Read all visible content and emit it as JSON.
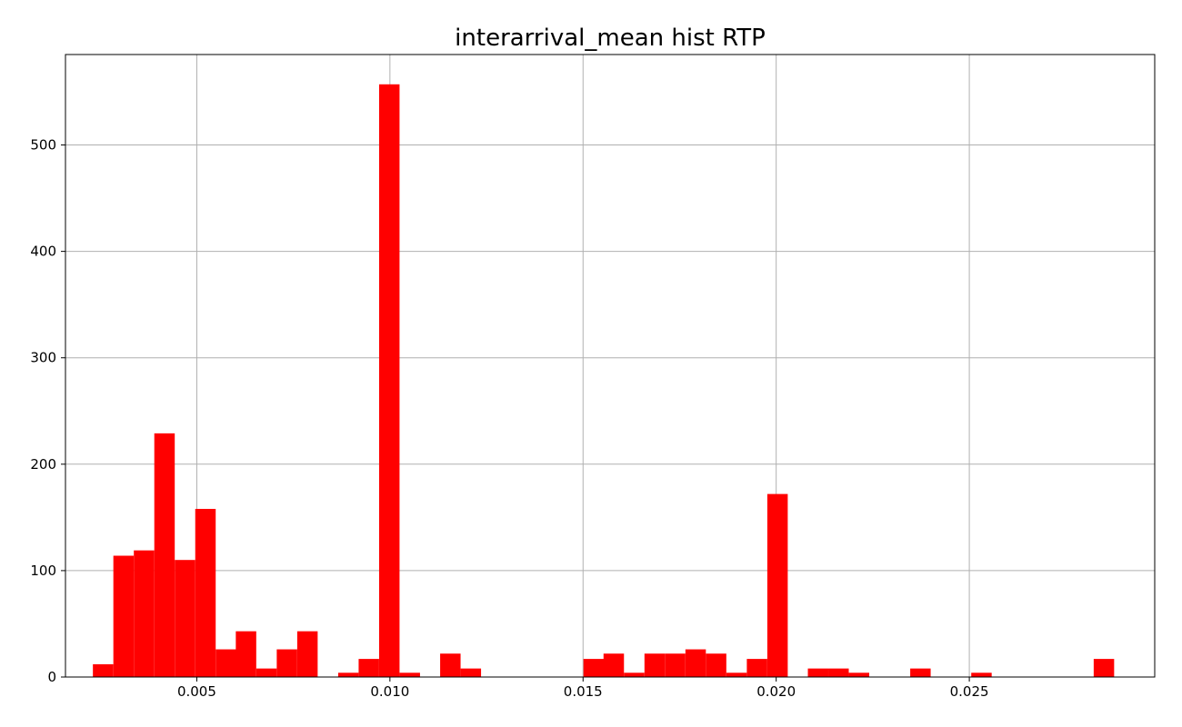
{
  "chart_data": {
    "type": "bar",
    "title": "interarrival_mean hist RTP",
    "xlabel": "",
    "ylabel": "",
    "xlim": [
      0.0016,
      0.0298
    ],
    "ylim": [
      0,
      585
    ],
    "grid": true,
    "bar_color": "#ff0000",
    "bin_width": 0.000529,
    "x_ticks": [
      0.005,
      0.01,
      0.015,
      0.02,
      0.025
    ],
    "x_tick_labels": [
      "0.005",
      "0.010",
      "0.015",
      "0.020",
      "0.025"
    ],
    "y_ticks": [
      0,
      100,
      200,
      300,
      400,
      500
    ],
    "y_tick_labels": [
      "0",
      "100",
      "200",
      "300",
      "400",
      "500"
    ],
    "bins": [
      {
        "start": 0.00231,
        "value": 12
      },
      {
        "start": 0.00284,
        "value": 114
      },
      {
        "start": 0.00337,
        "value": 119
      },
      {
        "start": 0.0039,
        "value": 229
      },
      {
        "start": 0.00443,
        "value": 110
      },
      {
        "start": 0.00496,
        "value": 158
      },
      {
        "start": 0.00549,
        "value": 26
      },
      {
        "start": 0.00601,
        "value": 43
      },
      {
        "start": 0.00654,
        "value": 8
      },
      {
        "start": 0.00707,
        "value": 26
      },
      {
        "start": 0.0076,
        "value": 43
      },
      {
        "start": 0.00866,
        "value": 4
      },
      {
        "start": 0.00919,
        "value": 17
      },
      {
        "start": 0.00972,
        "value": 557
      },
      {
        "start": 0.01025,
        "value": 4
      },
      {
        "start": 0.0113,
        "value": 22
      },
      {
        "start": 0.01183,
        "value": 8
      },
      {
        "start": 0.01501,
        "value": 17
      },
      {
        "start": 0.01553,
        "value": 22
      },
      {
        "start": 0.01606,
        "value": 4
      },
      {
        "start": 0.01659,
        "value": 22
      },
      {
        "start": 0.01712,
        "value": 22
      },
      {
        "start": 0.01765,
        "value": 26
      },
      {
        "start": 0.01818,
        "value": 22
      },
      {
        "start": 0.01871,
        "value": 4
      },
      {
        "start": 0.01924,
        "value": 17
      },
      {
        "start": 0.01977,
        "value": 172
      },
      {
        "start": 0.02082,
        "value": 8
      },
      {
        "start": 0.02135,
        "value": 8
      },
      {
        "start": 0.02188,
        "value": 4
      },
      {
        "start": 0.02347,
        "value": 8
      },
      {
        "start": 0.02505,
        "value": 4
      },
      {
        "start": 0.02822,
        "value": 17
      }
    ]
  }
}
